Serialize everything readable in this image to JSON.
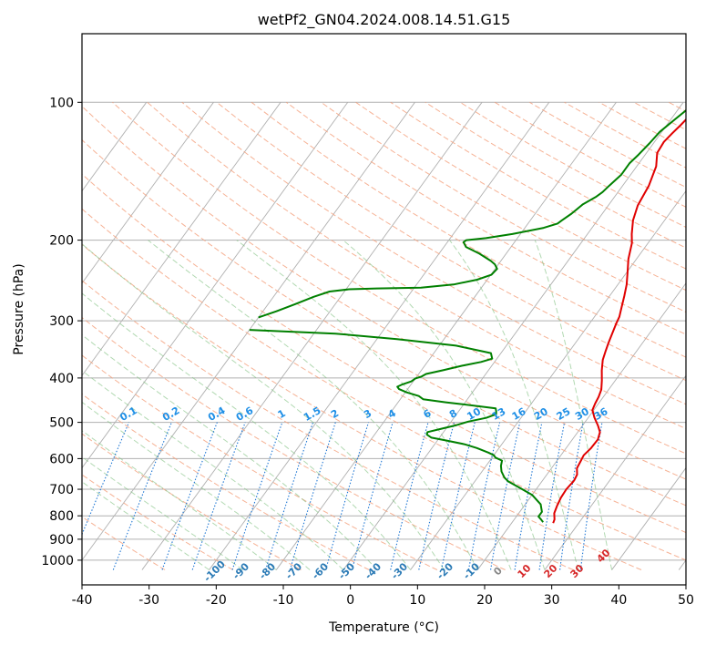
{
  "chart_data": {
    "type": "line",
    "title": "wetPf2_GN04.2024.008.14.51.G15",
    "xlabel": "Temperature (°C)",
    "ylabel": "Pressure (hPa)",
    "xlim": [
      -40,
      50
    ],
    "ylim": [
      1050,
      100
    ],
    "y_scale": "log",
    "grid": true,
    "x_ticks": [
      "-40",
      "-30",
      "-20",
      "-10",
      "0",
      "10",
      "20",
      "30",
      "40",
      "50"
    ],
    "y_ticks": [
      "100",
      "200",
      "300",
      "400",
      "500",
      "600",
      "700",
      "800",
      "900",
      "1000"
    ],
    "series": [
      {
        "role": "temperature",
        "color": "#e00000",
        "points": [
          [
            26.2,
            830
          ],
          [
            26.0,
            815
          ],
          [
            25.3,
            790
          ],
          [
            24.9,
            760
          ],
          [
            24.6,
            730
          ],
          [
            24.5,
            700
          ],
          [
            24.7,
            670
          ],
          [
            24.5,
            650
          ],
          [
            23.8,
            630
          ],
          [
            23.6,
            610
          ],
          [
            23.4,
            590
          ],
          [
            23.7,
            570
          ],
          [
            23.8,
            545
          ],
          [
            23.3,
            525
          ],
          [
            22.3,
            508
          ],
          [
            20.9,
            488
          ],
          [
            19.8,
            470
          ],
          [
            19.5,
            455
          ],
          [
            19.3,
            440
          ],
          [
            18.9,
            424
          ],
          [
            18.0,
            405
          ],
          [
            16.9,
            385
          ],
          [
            15.9,
            365
          ],
          [
            15.4,
            350
          ],
          [
            14.9,
            335
          ],
          [
            14.4,
            318
          ],
          [
            14.0,
            305
          ],
          [
            13.7,
            294
          ],
          [
            13.0,
            280
          ],
          [
            12.2,
            265
          ],
          [
            11.3,
            250
          ],
          [
            10.1,
            235
          ],
          [
            8.8,
            220
          ],
          [
            7.6,
            203
          ],
          [
            6.6,
            194
          ],
          [
            5.3,
            181
          ],
          [
            4.4,
            168
          ],
          [
            3.9,
            152
          ],
          [
            2.9,
            138
          ],
          [
            1.6,
            129
          ],
          [
            1.4,
            122
          ],
          [
            1.7,
            117
          ],
          [
            2.1,
            112
          ],
          [
            2.4,
            107
          ],
          [
            2.5,
            102
          ],
          [
            2.4,
            100
          ]
        ]
      },
      {
        "role": "dewpoint",
        "color": "#008000",
        "points": [
          [
            24.6,
            826
          ],
          [
            24.0,
            815
          ],
          [
            23.3,
            803
          ],
          [
            23.3,
            784
          ],
          [
            22.3,
            755
          ],
          [
            20.0,
            720
          ],
          [
            17.4,
            695
          ],
          [
            15.0,
            673
          ],
          [
            14.0,
            660
          ],
          [
            12.9,
            640
          ],
          [
            12.2,
            622
          ],
          [
            11.8,
            606
          ],
          [
            10.5,
            597
          ],
          [
            10.0,
            590
          ],
          [
            8.9,
            582
          ],
          [
            6.7,
            569
          ],
          [
            4.4,
            558
          ],
          [
            1.4,
            548
          ],
          [
            -1.2,
            540
          ],
          [
            -2.2,
            532
          ],
          [
            -2.4,
            525
          ],
          [
            -0.8,
            517
          ],
          [
            1.2,
            507
          ],
          [
            2.6,
            498
          ],
          [
            4.8,
            489
          ],
          [
            5.9,
            480
          ],
          [
            5.6,
            473
          ],
          [
            5.2,
            466
          ],
          [
            -0.5,
            456
          ],
          [
            -2.9,
            452
          ],
          [
            -6.6,
            445
          ],
          [
            -7.6,
            438
          ],
          [
            -9.8,
            430
          ],
          [
            -11.3,
            423
          ],
          [
            -11.8,
            418
          ],
          [
            -11.3,
            413
          ],
          [
            -10.3,
            407
          ],
          [
            -10.0,
            401
          ],
          [
            -9.3,
            397
          ],
          [
            -8.9,
            392
          ],
          [
            -6.9,
            385
          ],
          [
            -4.4,
            376
          ],
          [
            -2.0,
            369
          ],
          [
            -0.7,
            363
          ],
          [
            -1.5,
            353
          ],
          [
            -7.5,
            340
          ],
          [
            -17.0,
            329
          ],
          [
            -26.8,
            320
          ],
          [
            -38.0,
            315
          ],
          [
            -40.0,
            314
          ]
        ]
      },
      {
        "role": "dewpoint",
        "color": "#008000",
        "points": [
          [
            -40.0,
            295
          ],
          [
            -38.0,
            286
          ],
          [
            -36.0,
            276
          ],
          [
            -34.0,
            266
          ],
          [
            -32.2,
            259
          ],
          [
            -29.5,
            256
          ],
          [
            -25.5,
            255
          ],
          [
            -19.0,
            254
          ],
          [
            -14.5,
            250
          ],
          [
            -11.5,
            244
          ],
          [
            -9.9,
            238
          ],
          [
            -9.7,
            231
          ],
          [
            -10.5,
            226
          ],
          [
            -11.5,
            222
          ],
          [
            -14.0,
            214
          ],
          [
            -16.7,
            207
          ],
          [
            -17.6,
            202
          ],
          [
            -17.4,
            200
          ],
          [
            -14.7,
            198
          ],
          [
            -11.2,
            194
          ],
          [
            -7.2,
            188
          ],
          [
            -5.6,
            184
          ],
          [
            -5.3,
            181
          ],
          [
            -4.6,
            175
          ],
          [
            -3.9,
            167
          ],
          [
            -2.8,
            161
          ],
          [
            -2.3,
            157
          ],
          [
            -2.0,
            152
          ],
          [
            -1.4,
            144
          ],
          [
            -1.4,
            136
          ],
          [
            -1.0,
            130
          ],
          [
            -0.6,
            123
          ],
          [
            -0.3,
            116
          ],
          [
            0.6,
            109
          ],
          [
            1.3,
            104
          ],
          [
            2.2,
            100
          ]
        ]
      }
    ],
    "dry_adiabat_labels": [
      "-100",
      "-90",
      "-80",
      "-70",
      "-60",
      "-50",
      "-40",
      "-30",
      "-20",
      "-10",
      "0",
      "10",
      "20",
      "30",
      "40"
    ],
    "mixing_ratio_labels": [
      "0.1",
      "0.2",
      "0.4",
      "0.6",
      "1",
      "1.5",
      "2",
      "3",
      "4",
      "6",
      "8",
      "10",
      "13",
      "16",
      "20",
      "25",
      "30",
      "36"
    ],
    "colors": {
      "grid": "#b0b0b0",
      "dry_adiabat": "#f4a582",
      "moist_adiabat": "#7fbf7f",
      "mixing_ratio": "#1f77d4",
      "dry_label_cold": "#2c7bb6",
      "dry_label_warm": "#d62728",
      "dry_label_zero": "#888888",
      "mixing_label": "#1f8fe6"
    }
  }
}
